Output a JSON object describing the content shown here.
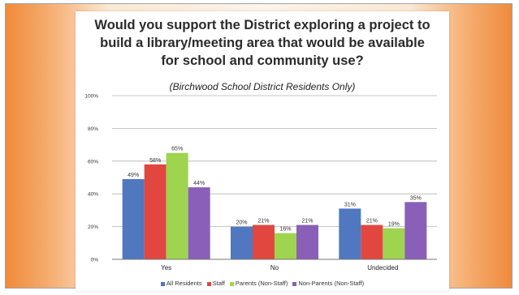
{
  "chart_data": {
    "type": "bar",
    "title": "Would you support the District exploring a project to\nbuild a library/meeting area that would be available\nfor school and community use?",
    "subtitle": "(Birchwood School District Residents Only)",
    "categories": [
      "Yes",
      "No",
      "Undecided"
    ],
    "series": [
      {
        "name": "All Residents",
        "color": "#4f78c0",
        "values": [
          49,
          20,
          31
        ],
        "labels": [
          "49%",
          "20%",
          "31%"
        ]
      },
      {
        "name": "Staff",
        "color": "#e2473f",
        "values": [
          58,
          21,
          21
        ],
        "labels": [
          "58%",
          "21%",
          "21%"
        ]
      },
      {
        "name": "Parents (Non-Staff)",
        "color": "#9fd44f",
        "values": [
          65,
          16,
          19
        ],
        "labels": [
          "65%",
          "16%",
          "19%"
        ]
      },
      {
        "name": "Non-Parents (Non-Staff)",
        "color": "#8a5fb8",
        "values": [
          44,
          21,
          35
        ],
        "labels": [
          "44%",
          "21%",
          "35%"
        ]
      }
    ],
    "yticks": [
      "0%",
      "20%",
      "40%",
      "60%",
      "80%",
      "100%"
    ],
    "ylim": [
      0,
      100
    ],
    "grid": true,
    "legend_position": "bottom"
  }
}
